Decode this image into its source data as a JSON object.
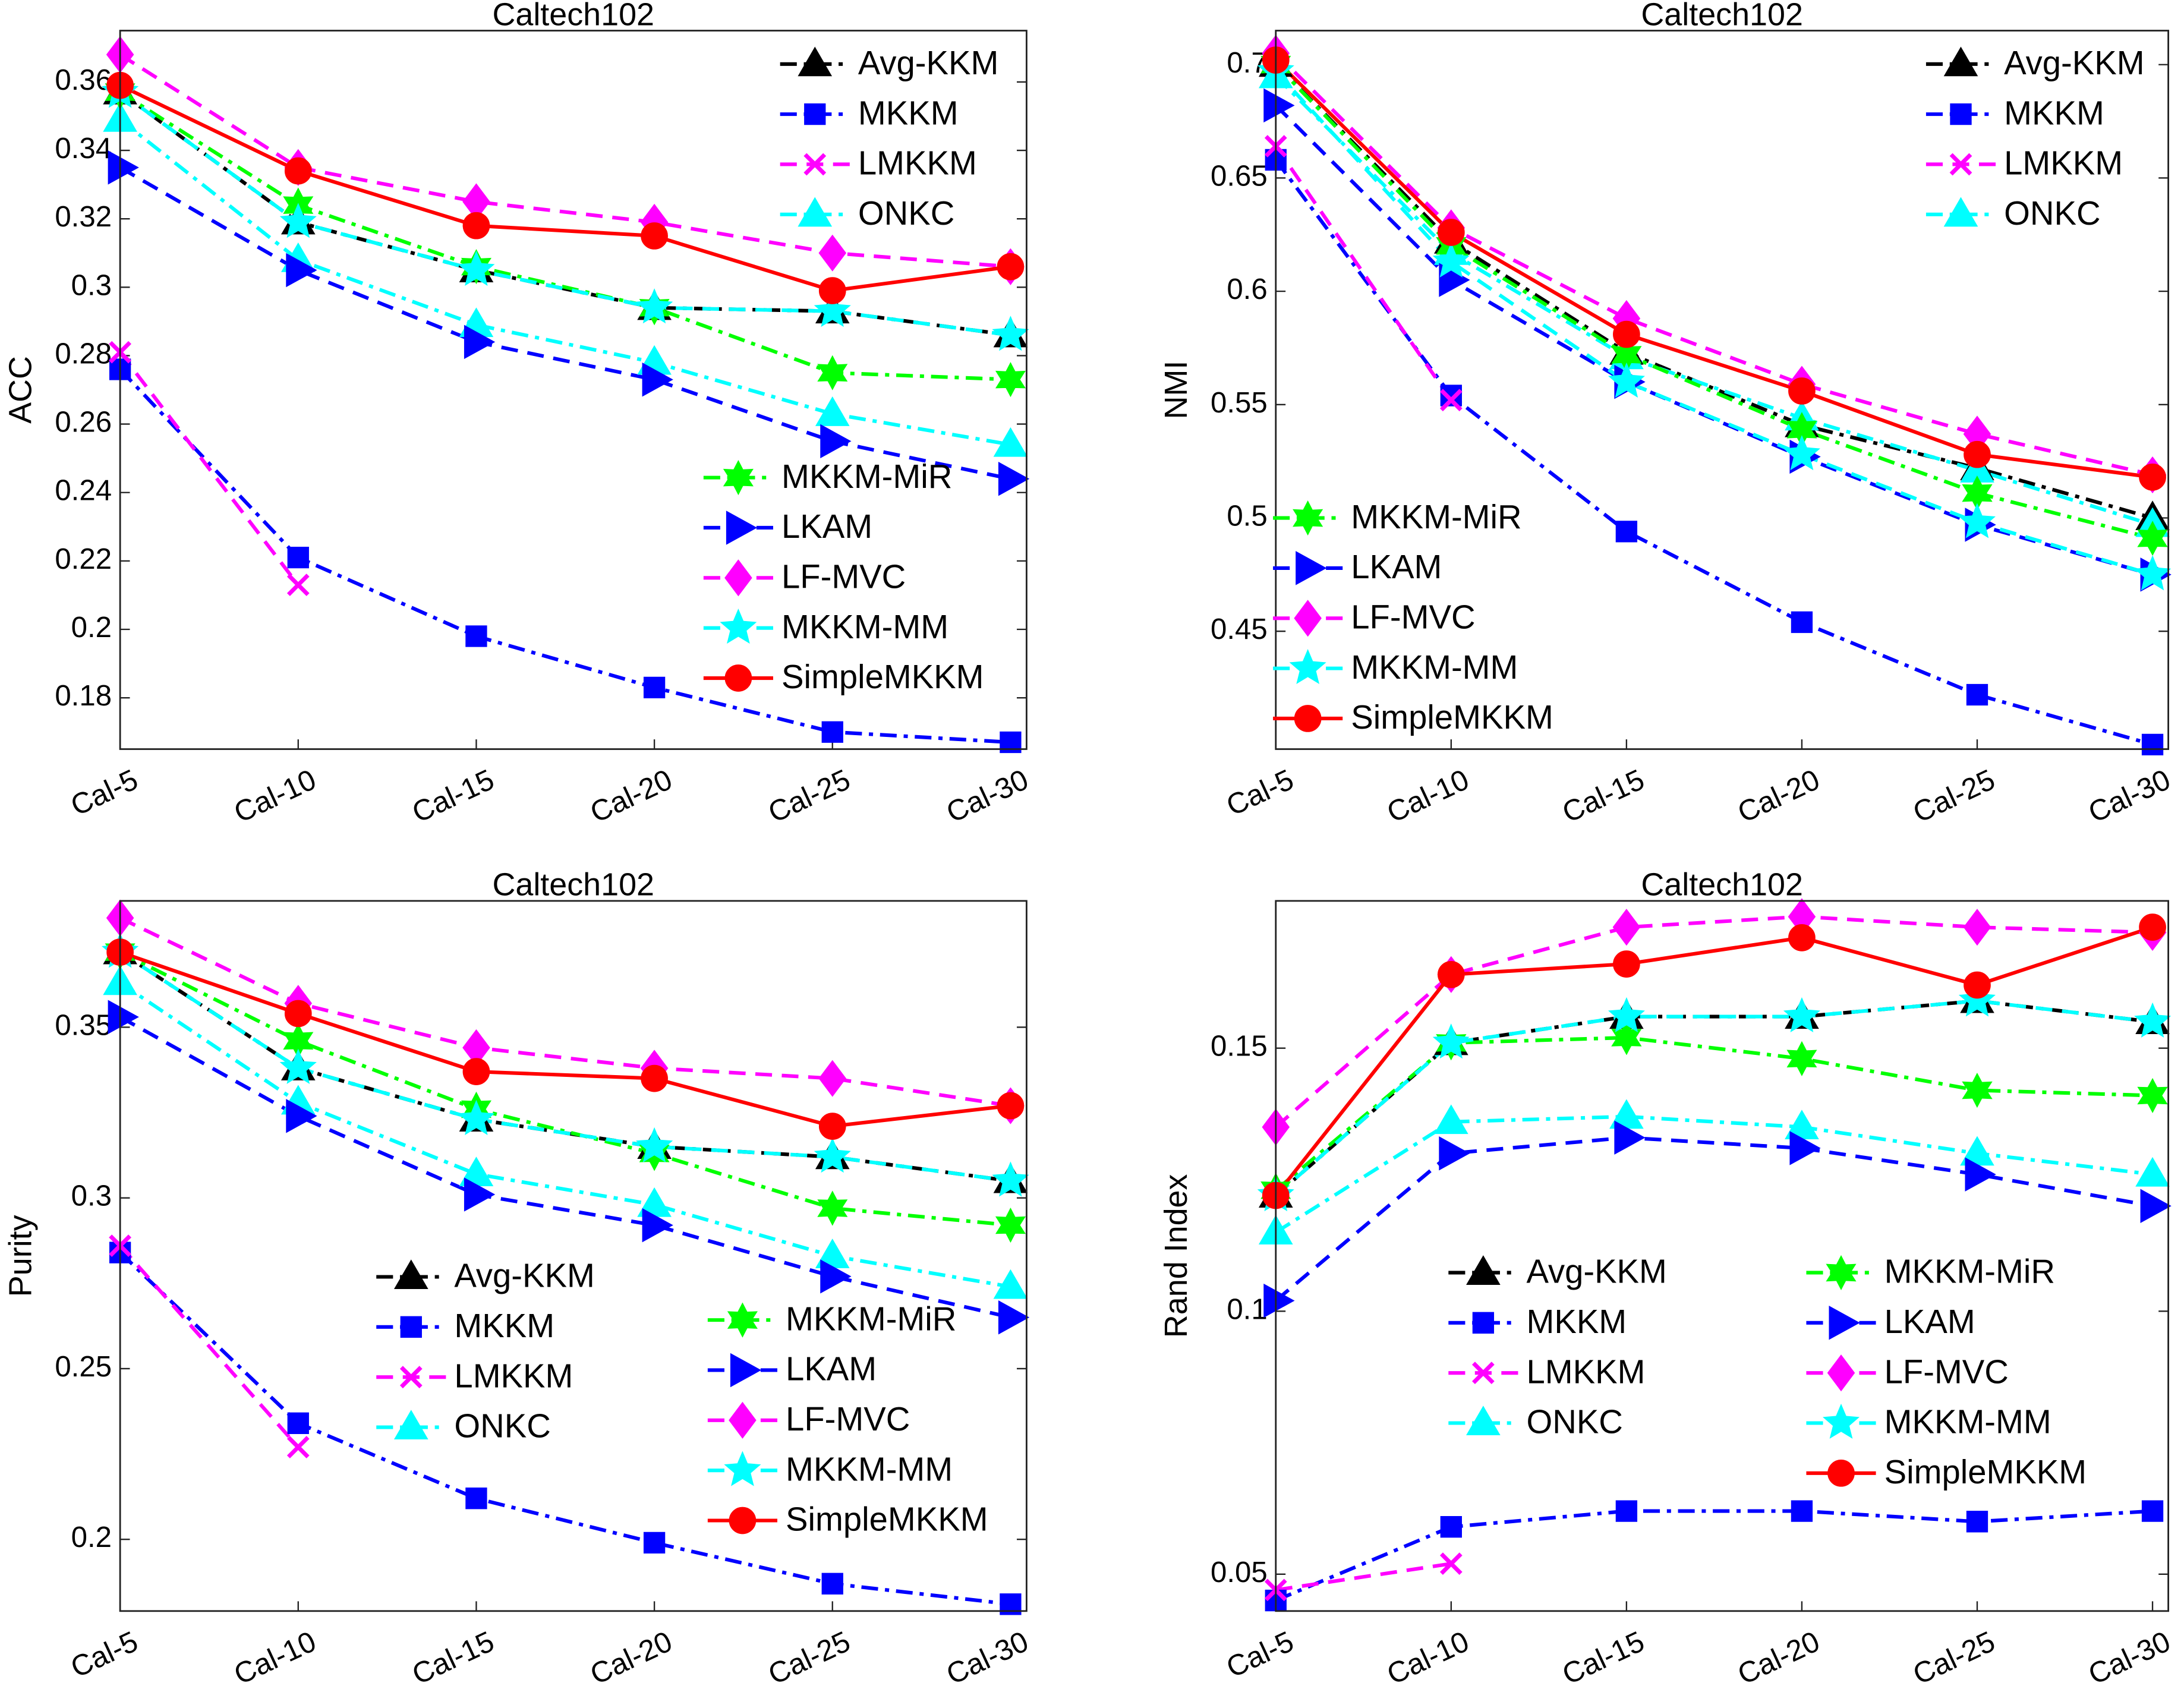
{
  "chart_data": [
    {
      "type": "line",
      "title": "Caltech102",
      "ylabel": "ACC",
      "categories": [
        "Cal-5",
        "Cal-10",
        "Cal-15",
        "Cal-20",
        "Cal-25",
        "Cal-30"
      ],
      "ylim": [
        0.165,
        0.375
      ],
      "yticks": [
        0.18,
        0.2,
        0.22,
        0.24,
        0.26,
        0.28,
        0.3,
        0.32,
        0.34,
        0.36
      ],
      "series": [
        {
          "name": "Avg-KKM",
          "color": "#000000",
          "marker": "triangle",
          "linestyle": "dashdot",
          "values": [
            0.357,
            0.319,
            0.305,
            0.294,
            0.293,
            0.286
          ]
        },
        {
          "name": "MKKM",
          "color": "#0000ff",
          "marker": "square",
          "linestyle": "dashdot",
          "values": [
            0.276,
            0.221,
            0.198,
            0.183,
            0.17,
            0.167
          ]
        },
        {
          "name": "LMKKM",
          "color": "#ff00ff",
          "marker": "x",
          "linestyle": "dashed",
          "values": [
            0.281,
            0.213,
            null,
            null,
            null,
            null
          ]
        },
        {
          "name": "ONKC",
          "color": "#00ffff",
          "marker": "triangle",
          "linestyle": "dashdot",
          "values": [
            0.349,
            0.308,
            0.289,
            0.278,
            0.263,
            0.254
          ]
        },
        {
          "name": "MKKM-MiR",
          "color": "#00ff00",
          "marker": "hexagram",
          "linestyle": "dashdot",
          "values": [
            0.357,
            0.324,
            0.306,
            0.294,
            0.275,
            0.273
          ]
        },
        {
          "name": "LKAM",
          "color": "#0000ff",
          "marker": "triangle-right",
          "linestyle": "dashed",
          "values": [
            0.335,
            0.305,
            0.284,
            0.273,
            0.255,
            0.244
          ]
        },
        {
          "name": "LF-MVC",
          "color": "#ff00ff",
          "marker": "diamond",
          "linestyle": "dashed",
          "values": [
            0.368,
            0.335,
            0.325,
            0.319,
            0.31,
            0.306
          ]
        },
        {
          "name": "MKKM-MM",
          "color": "#00ffff",
          "marker": "pentagram",
          "linestyle": "dashed",
          "values": [
            0.357,
            0.319,
            0.305,
            0.294,
            0.293,
            0.286
          ]
        },
        {
          "name": "SimpleMKKM",
          "color": "#ff0000",
          "marker": "circle",
          "linestyle": "solid",
          "values": [
            0.359,
            0.334,
            0.318,
            0.315,
            0.299,
            0.306
          ]
        }
      ]
    },
    {
      "type": "line",
      "title": "Caltech102",
      "ylabel": "NMI",
      "categories": [
        "Cal-5",
        "Cal-10",
        "Cal-15",
        "Cal-20",
        "Cal-25",
        "Cal-30"
      ],
      "ylim": [
        0.398,
        0.715
      ],
      "yticks": [
        0.45,
        0.5,
        0.55,
        0.6,
        0.65,
        0.7
      ],
      "series": [
        {
          "name": "Avg-KKM",
          "color": "#000000",
          "marker": "triangle",
          "linestyle": "dashdot",
          "values": [
            0.7,
            0.622,
            0.573,
            0.541,
            0.522,
            0.5
          ]
        },
        {
          "name": "MKKM",
          "color": "#0000ff",
          "marker": "square",
          "linestyle": "dashdot",
          "values": [
            0.658,
            0.554,
            0.494,
            0.454,
            0.422,
            0.4
          ]
        },
        {
          "name": "LMKKM",
          "color": "#ff00ff",
          "marker": "x",
          "linestyle": "dashed",
          "values": [
            0.664,
            0.552,
            null,
            null,
            null,
            null
          ]
        },
        {
          "name": "ONKC",
          "color": "#00ffff",
          "marker": "triangle",
          "linestyle": "dashdot",
          "values": [
            0.695,
            0.617,
            0.571,
            0.544,
            0.521,
            0.497
          ]
        },
        {
          "name": "MKKM-MiR",
          "color": "#00ff00",
          "marker": "hexagram",
          "linestyle": "dashdot",
          "values": [
            0.7,
            0.62,
            0.572,
            0.539,
            0.511,
            0.491
          ]
        },
        {
          "name": "LKAM",
          "color": "#0000ff",
          "marker": "triangle-right",
          "linestyle": "dashed",
          "values": [
            0.682,
            0.605,
            0.56,
            0.527,
            0.497,
            0.475
          ]
        },
        {
          "name": "LF-MVC",
          "color": "#ff00ff",
          "marker": "diamond",
          "linestyle": "dashed",
          "values": [
            0.705,
            0.628,
            0.588,
            0.559,
            0.537,
            0.519
          ]
        },
        {
          "name": "MKKM-MM",
          "color": "#00ffff",
          "marker": "pentagram",
          "linestyle": "dashed",
          "values": [
            0.697,
            0.613,
            0.56,
            0.528,
            0.498,
            0.475
          ]
        },
        {
          "name": "SimpleMKKM",
          "color": "#ff0000",
          "marker": "circle",
          "linestyle": "solid",
          "values": [
            0.702,
            0.626,
            0.581,
            0.556,
            0.528,
            0.518
          ]
        }
      ]
    },
    {
      "type": "line",
      "title": "Caltech102",
      "ylabel": "Purity",
      "categories": [
        "Cal-5",
        "Cal-10",
        "Cal-15",
        "Cal-20",
        "Cal-25",
        "Cal-30"
      ],
      "ylim": [
        0.179,
        0.387
      ],
      "yticks": [
        0.2,
        0.25,
        0.3,
        0.35
      ],
      "series": [
        {
          "name": "Avg-KKM",
          "color": "#000000",
          "marker": "triangle",
          "linestyle": "dashdot",
          "values": [
            0.372,
            0.338,
            0.323,
            0.315,
            0.312,
            0.305
          ]
        },
        {
          "name": "MKKM",
          "color": "#0000ff",
          "marker": "square",
          "linestyle": "dashdot",
          "values": [
            0.284,
            0.234,
            0.212,
            0.199,
            0.187,
            0.181
          ]
        },
        {
          "name": "LMKKM",
          "color": "#ff00ff",
          "marker": "x",
          "linestyle": "dashed",
          "values": [
            0.286,
            0.227,
            null,
            null,
            null,
            null
          ]
        },
        {
          "name": "ONKC",
          "color": "#00ffff",
          "marker": "triangle",
          "linestyle": "dashdot",
          "values": [
            0.363,
            0.328,
            0.307,
            0.298,
            0.283,
            0.274
          ]
        },
        {
          "name": "MKKM-MiR",
          "color": "#00ff00",
          "marker": "hexagram",
          "linestyle": "dashdot",
          "values": [
            0.372,
            0.346,
            0.326,
            0.313,
            0.297,
            0.292
          ]
        },
        {
          "name": "LKAM",
          "color": "#0000ff",
          "marker": "triangle-right",
          "linestyle": "dashed",
          "values": [
            0.353,
            0.324,
            0.301,
            0.292,
            0.277,
            0.265
          ]
        },
        {
          "name": "LF-MVC",
          "color": "#ff00ff",
          "marker": "diamond",
          "linestyle": "dashed",
          "values": [
            0.382,
            0.357,
            0.344,
            0.338,
            0.335,
            0.327
          ]
        },
        {
          "name": "MKKM-MM",
          "color": "#00ffff",
          "marker": "pentagram",
          "linestyle": "dashed",
          "values": [
            0.372,
            0.338,
            0.323,
            0.315,
            0.312,
            0.305
          ]
        },
        {
          "name": "SimpleMKKM",
          "color": "#ff0000",
          "marker": "circle",
          "linestyle": "solid",
          "values": [
            0.372,
            0.354,
            0.337,
            0.335,
            0.321,
            0.327
          ]
        }
      ]
    },
    {
      "type": "line",
      "title": "Caltech102",
      "ylabel": "Rand Index",
      "categories": [
        "Cal-5",
        "Cal-10",
        "Cal-15",
        "Cal-20",
        "Cal-25",
        "Cal-30"
      ],
      "ylim": [
        0.043,
        0.178
      ],
      "yticks": [
        0.05,
        0.1,
        0.15
      ],
      "series": [
        {
          "name": "Avg-KKM",
          "color": "#000000",
          "marker": "triangle",
          "linestyle": "dashdot",
          "values": [
            0.122,
            0.151,
            0.156,
            0.156,
            0.159,
            0.155
          ]
        },
        {
          "name": "MKKM",
          "color": "#0000ff",
          "marker": "square",
          "linestyle": "dashdot",
          "values": [
            0.045,
            0.059,
            0.062,
            0.062,
            0.06,
            0.062
          ]
        },
        {
          "name": "LMKKM",
          "color": "#ff00ff",
          "marker": "x",
          "linestyle": "dashed",
          "values": [
            0.047,
            0.052,
            null,
            null,
            null,
            null
          ]
        },
        {
          "name": "ONKC",
          "color": "#00ffff",
          "marker": "triangle",
          "linestyle": "dashdot",
          "values": [
            0.115,
            0.136,
            0.137,
            0.135,
            0.13,
            0.126
          ]
        },
        {
          "name": "MKKM-MiR",
          "color": "#00ff00",
          "marker": "hexagram",
          "linestyle": "dashdot",
          "values": [
            0.123,
            0.151,
            0.152,
            0.148,
            0.142,
            0.141
          ]
        },
        {
          "name": "LKAM",
          "color": "#0000ff",
          "marker": "triangle-right",
          "linestyle": "dashed",
          "values": [
            0.102,
            0.13,
            0.133,
            0.131,
            0.126,
            0.12
          ]
        },
        {
          "name": "LF-MVC",
          "color": "#ff00ff",
          "marker": "diamond",
          "linestyle": "dashed",
          "values": [
            0.135,
            0.164,
            0.173,
            0.175,
            0.173,
            0.172
          ]
        },
        {
          "name": "MKKM-MM",
          "color": "#00ffff",
          "marker": "pentagram",
          "linestyle": "dashed",
          "values": [
            0.122,
            0.151,
            0.156,
            0.156,
            0.159,
            0.155
          ]
        },
        {
          "name": "SimpleMKKM",
          "color": "#ff0000",
          "marker": "circle",
          "linestyle": "solid",
          "values": [
            0.122,
            0.164,
            0.166,
            0.171,
            0.162,
            0.173
          ]
        }
      ]
    }
  ]
}
